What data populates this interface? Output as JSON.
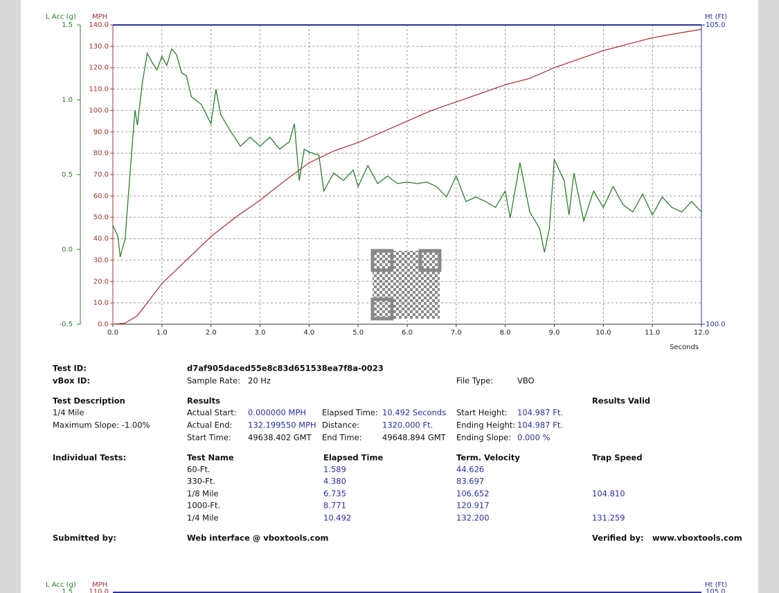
{
  "chart_data": {
    "type": "line",
    "x_label": "Seconds",
    "y_label": "MPH",
    "acc_label": "L Acc (g)",
    "height_label": "Ht (Ft)",
    "xlim": [
      0,
      12
    ],
    "xticks": [
      {
        "value": 0,
        "label": "0.0"
      },
      {
        "value": 1,
        "label": "1.0"
      },
      {
        "value": 2,
        "label": "2.0"
      },
      {
        "value": 3,
        "label": "3.0"
      },
      {
        "value": 4,
        "label": "4.0"
      },
      {
        "value": 5,
        "label": "5.0"
      },
      {
        "value": 6,
        "label": "6.0"
      },
      {
        "value": 7,
        "label": "7.0"
      },
      {
        "value": 8,
        "label": "8.0"
      },
      {
        "value": 9,
        "label": "9.0"
      },
      {
        "value": 10,
        "label": "10.0"
      },
      {
        "value": 11,
        "label": "11.0"
      },
      {
        "value": 12,
        "label": "12.0"
      }
    ],
    "ylim": [
      0,
      140
    ],
    "yticks": [
      {
        "value": 0,
        "label": "0.0"
      },
      {
        "value": 10,
        "label": "10.0"
      },
      {
        "value": 20,
        "label": "20.0"
      },
      {
        "value": 30,
        "label": "30.0"
      },
      {
        "value": 40,
        "label": "40.0"
      },
      {
        "value": 50,
        "label": "50.0"
      },
      {
        "value": 60,
        "label": "60.0"
      },
      {
        "value": 70,
        "label": "70.0"
      },
      {
        "value": 80,
        "label": "80.0"
      },
      {
        "value": 90,
        "label": "90.0"
      },
      {
        "value": 100,
        "label": "100.0"
      },
      {
        "value": 110,
        "label": "110.0"
      },
      {
        "value": 120,
        "label": "120.0"
      },
      {
        "value": 130,
        "label": "130.0"
      },
      {
        "value": 140,
        "label": "140.0"
      }
    ],
    "acc_lim": [
      -0.5,
      1.5
    ],
    "acc_ticks": [
      -0.5,
      {
        "value": 0,
        "label": "0.0"
      },
      0.5,
      {
        "value": 1,
        "label": "1.0"
      },
      1.5
    ],
    "height_lim": [
      100,
      105
    ],
    "height_ticks": [
      {
        "value": 100,
        "label": "100.0"
      },
      {
        "value": 105,
        "label": "105.0"
      }
    ],
    "grid": true,
    "series": [
      {
        "color": "#b03a3a",
        "axis": "y",
        "x": [
          0,
          0.25,
          0.5,
          1,
          1.5,
          2,
          2.5,
          3,
          3.5,
          4,
          4.5,
          5,
          5.5,
          6,
          6.5,
          7,
          7.5,
          8,
          8.5,
          9,
          9.5,
          10,
          10.5,
          11,
          11.5,
          12
        ],
        "values": [
          0,
          0.5,
          4,
          19,
          30,
          41,
          50,
          58,
          67,
          75.5,
          81,
          85,
          90,
          95,
          100,
          104,
          108,
          112,
          115,
          120,
          124,
          128,
          131,
          134,
          136,
          138
        ]
      },
      {
        "color": "#2e7d2e",
        "axis": "acc",
        "x": [
          0,
          0.1,
          0.15,
          0.25,
          0.35,
          0.45,
          0.5,
          0.6,
          0.7,
          0.8,
          0.9,
          1.0,
          1.1,
          1.2,
          1.3,
          1.4,
          1.5,
          1.6,
          1.8,
          2.0,
          2.1,
          2.2,
          2.4,
          2.6,
          2.8,
          3.0,
          3.2,
          3.4,
          3.6,
          3.7,
          3.8,
          3.9,
          4.0,
          4.2,
          4.3,
          4.5,
          4.7,
          4.9,
          5.0,
          5.2,
          5.4,
          5.6,
          5.8,
          6.0,
          6.2,
          6.4,
          6.6,
          6.8,
          7.0,
          7.2,
          7.4,
          7.6,
          7.8,
          8.0,
          8.1,
          8.3,
          8.5,
          8.7,
          8.8,
          8.9,
          9.0,
          9.2,
          9.3,
          9.4,
          9.6,
          9.8,
          10.0,
          10.2,
          10.4,
          10.6,
          10.8,
          11.0,
          11.2,
          11.4,
          11.6,
          11.8,
          12.0
        ],
        "values": [
          0.16,
          0.09,
          -0.05,
          0.07,
          0.51,
          0.93,
          0.83,
          1.11,
          1.31,
          1.25,
          1.2,
          1.29,
          1.23,
          1.34,
          1.3,
          1.18,
          1.16,
          1.02,
          0.97,
          0.84,
          1.07,
          0.9,
          0.79,
          0.69,
          0.75,
          0.69,
          0.75,
          0.67,
          0.72,
          0.84,
          0.46,
          0.67,
          0.65,
          0.63,
          0.39,
          0.51,
          0.46,
          0.53,
          0.42,
          0.56,
          0.44,
          0.49,
          0.44,
          0.45,
          0.44,
          0.45,
          0.42,
          0.35,
          0.49,
          0.32,
          0.35,
          0.32,
          0.28,
          0.39,
          0.21,
          0.58,
          0.25,
          0.14,
          -0.02,
          0.14,
          0.6,
          0.46,
          0.23,
          0.51,
          0.19,
          0.39,
          0.28,
          0.42,
          0.3,
          0.25,
          0.37,
          0.23,
          0.35,
          0.28,
          0.25,
          0.32,
          0.25
        ]
      }
    ]
  },
  "report": {
    "test_id": {
      "label": "Test ID:",
      "value": "d7af905daced55e8c83d651538ea7f8a-0023"
    },
    "vbox_id": {
      "label": "vBox ID:"
    },
    "sample_rate": {
      "label": "Sample Rate:",
      "value": "20 Hz"
    },
    "file_type": {
      "label": "File Type:",
      "value": "VBO"
    },
    "test_description": {
      "label": "Test Description",
      "lines": [
        "1/4 Mile",
        "Maximum Slope:  -1.00%"
      ]
    },
    "results": {
      "label": "Results",
      "valid": "Results Valid",
      "columns": [
        [
          {
            "label": "Actual Start:",
            "value": "0.000000 MPH"
          },
          {
            "label": "Actual End:",
            "value": "132.199550 MPH"
          },
          {
            "label": "Start Time:",
            "value": "49638.402 GMT"
          }
        ],
        [
          {
            "label": "Elapsed Time:",
            "value": "10.492 Seconds"
          },
          {
            "label": "Distance:",
            "value": "1320.000 Ft."
          },
          {
            "label": "End Time:",
            "value": "49648.894 GMT"
          }
        ],
        [
          {
            "label": "Start Height:",
            "value": "104.987 Ft."
          },
          {
            "label": "Ending Height:",
            "value": "104.987 Ft."
          },
          {
            "label": "Ending Slope:",
            "value": "0.000 %"
          }
        ]
      ]
    },
    "individual_tests": {
      "label": "Individual Tests:",
      "headers": [
        "Test Name",
        "Elapsed Time",
        "Term. Velocity",
        "Trap Speed"
      ],
      "rows": [
        [
          "60-Ft.",
          "1.589",
          "44.626",
          null
        ],
        [
          "330-Ft.",
          "4.380",
          "83.697",
          null
        ],
        [
          "1/8 Mile",
          "6.735",
          "106.652",
          "104.810"
        ],
        [
          "1000-Ft.",
          "8.771",
          "120.917",
          null
        ],
        [
          "1/4 Mile",
          "10.492",
          "132.200",
          "131.259"
        ]
      ]
    },
    "submitted": {
      "label": "Submitted by:",
      "value": "Web interface @ vboxtools.com"
    },
    "verified": {
      "label": "Verified by:",
      "value": "www.vboxtools.com"
    }
  },
  "next_chart": {
    "acc_label": "L Acc (g)",
    "y_label": "MPH",
    "height_label": "Ht (Ft)",
    "acc_top": "1.5",
    "y_top": "110.0",
    "height_top": "105.0"
  }
}
